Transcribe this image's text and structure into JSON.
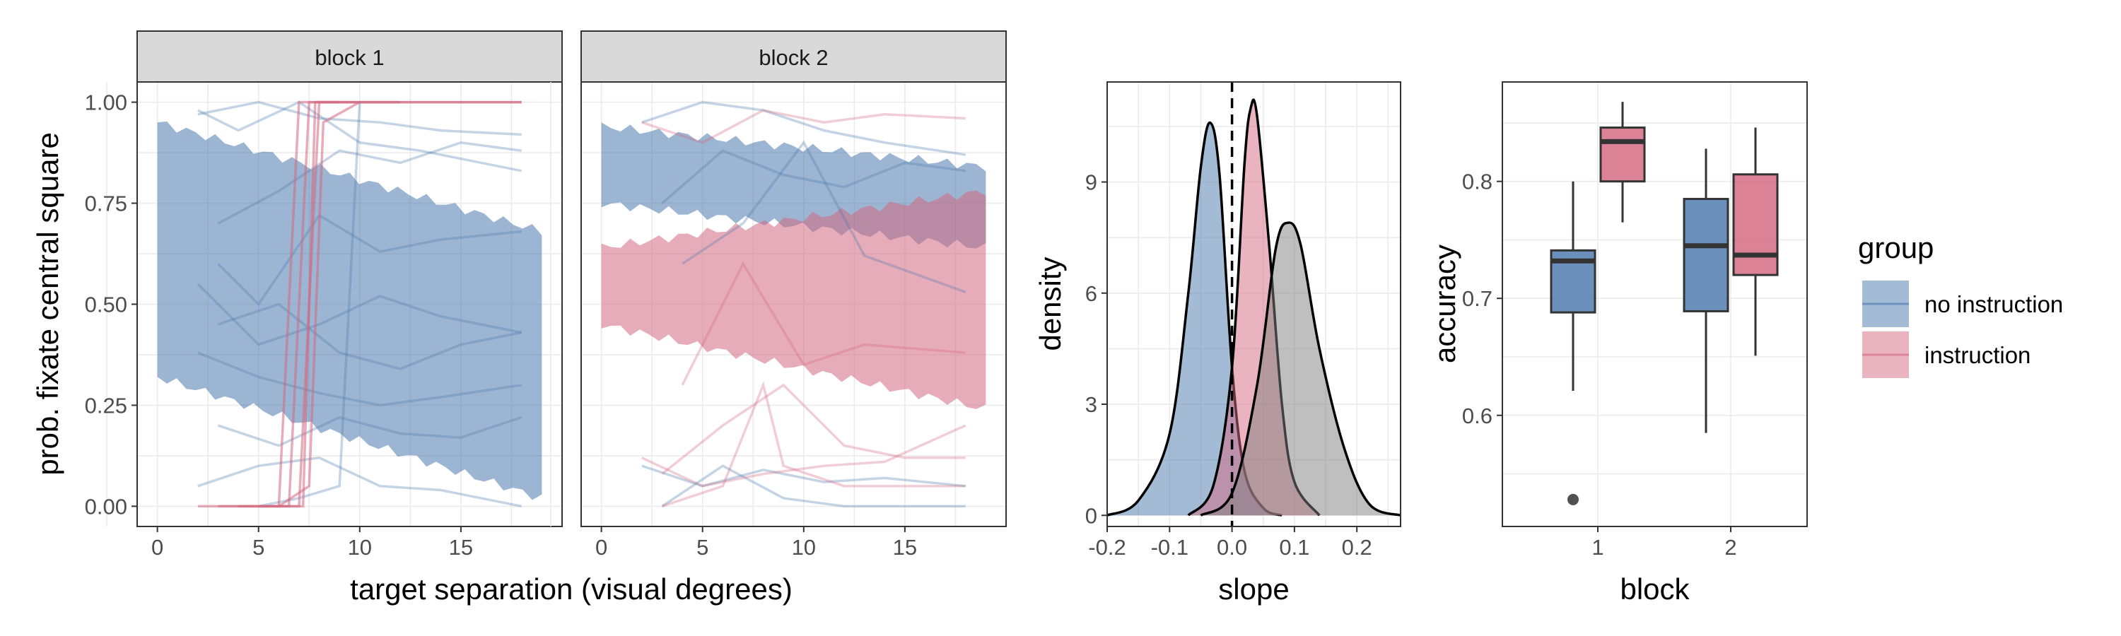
{
  "colors": {
    "no_instruction": "#4a78ad",
    "instruction": "#d4677f",
    "overlap": "#808080",
    "grid": "#ebebeb",
    "border": "#333333",
    "strip_fill": "#d9d9d9"
  },
  "legend": {
    "title": "group",
    "items": [
      "no instruction",
      "instruction"
    ]
  },
  "chart_data": [
    {
      "type": "line",
      "facets": [
        "block 1",
        "block 2"
      ],
      "xlabel": "target separation (visual degrees)",
      "ylabel": "prob. fixate central square",
      "xlim": [
        -1,
        20
      ],
      "ylim": [
        -0.05,
        1.05
      ],
      "xticks": [
        "0",
        "5",
        "10",
        "15"
      ],
      "yticks": [
        "0.00",
        "0.25",
        "0.50",
        "0.75",
        "1.00"
      ],
      "ribbons": [
        {
          "facet": "block 1",
          "series": "no instruction",
          "x": [
            0,
            19
          ],
          "lower": [
            0.32,
            0.02
          ],
          "upper": [
            0.95,
            0.68
          ]
        },
        {
          "facet": "block 2",
          "series": "no instruction",
          "x": [
            0,
            19
          ],
          "lower": [
            0.75,
            0.64
          ],
          "upper": [
            0.94,
            0.84
          ]
        },
        {
          "facet": "block 2",
          "series": "instruction",
          "x": [
            0,
            19
          ],
          "lower": [
            0.45,
            0.24
          ],
          "upper": [
            0.64,
            0.78
          ]
        }
      ],
      "individual_lines": [
        {
          "facet": "block 1",
          "series": "no instruction",
          "x": [
            2,
            5,
            8,
            11,
            14,
            18
          ],
          "y": [
            0.97,
            1.0,
            0.96,
            0.95,
            0.93,
            0.92
          ]
        },
        {
          "facet": "block 1",
          "series": "no instruction",
          "x": [
            3,
            6,
            9,
            12,
            15,
            18
          ],
          "y": [
            0.7,
            0.78,
            0.88,
            0.85,
            0.9,
            0.88
          ]
        },
        {
          "facet": "block 1",
          "series": "no instruction",
          "x": [
            2,
            4,
            7,
            10,
            13,
            18
          ],
          "y": [
            0.98,
            0.93,
            1.0,
            0.9,
            0.88,
            0.83
          ]
        },
        {
          "facet": "block 1",
          "series": "no instruction",
          "x": [
            3,
            5,
            8,
            11,
            14,
            18
          ],
          "y": [
            0.6,
            0.5,
            0.72,
            0.63,
            0.66,
            0.68
          ]
        },
        {
          "facet": "block 1",
          "series": "no instruction",
          "x": [
            2,
            5,
            8,
            11,
            14,
            18
          ],
          "y": [
            0.55,
            0.4,
            0.45,
            0.52,
            0.47,
            0.43
          ]
        },
        {
          "facet": "block 1",
          "series": "no instruction",
          "x": [
            3,
            6,
            9,
            12,
            15,
            18
          ],
          "y": [
            0.45,
            0.5,
            0.38,
            0.34,
            0.4,
            0.43
          ]
        },
        {
          "facet": "block 1",
          "series": "no instruction",
          "x": [
            2,
            5,
            8,
            11,
            14,
            18
          ],
          "y": [
            0.38,
            0.32,
            0.28,
            0.25,
            0.27,
            0.3
          ]
        },
        {
          "facet": "block 1",
          "series": "no instruction",
          "x": [
            3,
            6,
            9,
            12,
            15,
            18
          ],
          "y": [
            0.2,
            0.15,
            0.22,
            0.18,
            0.17,
            0.22
          ]
        },
        {
          "facet": "block 1",
          "series": "no instruction",
          "x": [
            2,
            5,
            8,
            11,
            14,
            18
          ],
          "y": [
            0.05,
            0.1,
            0.12,
            0.05,
            0.04,
            0.0
          ]
        },
        {
          "facet": "block 1",
          "series": "no instruction",
          "x": [
            5,
            7,
            9,
            10
          ],
          "y": [
            0.0,
            0.02,
            0.05,
            1.0
          ]
        },
        {
          "facet": "block 1",
          "series": "instruction",
          "x": [
            2,
            6,
            7,
            18
          ],
          "y": [
            0.0,
            0.0,
            1.0,
            1.0
          ]
        },
        {
          "facet": "block 1",
          "series": "instruction",
          "x": [
            3,
            6.5,
            7.5,
            18
          ],
          "y": [
            0.0,
            0.0,
            1.0,
            1.0
          ]
        },
        {
          "facet": "block 1",
          "series": "instruction",
          "x": [
            4,
            7,
            8,
            12
          ],
          "y": [
            0.0,
            0.0,
            1.0,
            1.0
          ]
        },
        {
          "facet": "block 1",
          "series": "instruction",
          "x": [
            5,
            7.2,
            7.8,
            9
          ],
          "y": [
            0.0,
            0.0,
            1.0,
            1.0
          ]
        },
        {
          "facet": "block 1",
          "series": "instruction",
          "x": [
            6,
            7.5,
            8.2,
            10
          ],
          "y": [
            0.0,
            0.05,
            0.95,
            1.0
          ]
        },
        {
          "facet": "block 2",
          "series": "no instruction",
          "x": [
            2,
            5,
            8,
            11,
            14,
            18
          ],
          "y": [
            0.95,
            1.0,
            0.98,
            0.93,
            0.9,
            0.87
          ]
        },
        {
          "facet": "block 2",
          "series": "no instruction",
          "x": [
            3,
            6,
            9,
            12,
            15,
            18
          ],
          "y": [
            0.75,
            0.88,
            0.82,
            0.79,
            0.85,
            0.83
          ]
        },
        {
          "facet": "block 2",
          "series": "no instruction",
          "x": [
            4,
            7,
            10,
            13,
            18
          ],
          "y": [
            0.6,
            0.7,
            0.9,
            0.62,
            0.53
          ]
        },
        {
          "facet": "block 2",
          "series": "no instruction",
          "x": [
            2,
            5,
            8,
            11,
            14,
            18
          ],
          "y": [
            0.1,
            0.05,
            0.09,
            0.06,
            0.07,
            0.05
          ]
        },
        {
          "facet": "block 2",
          "series": "no instruction",
          "x": [
            3,
            6,
            9,
            12,
            15,
            18
          ],
          "y": [
            0.0,
            0.1,
            0.02,
            0.0,
            0.0,
            0.0
          ]
        },
        {
          "facet": "block 2",
          "series": "instruction",
          "x": [
            2,
            5,
            8,
            11,
            14,
            18
          ],
          "y": [
            0.95,
            0.9,
            0.98,
            0.95,
            0.97,
            0.96
          ]
        },
        {
          "facet": "block 2",
          "series": "instruction",
          "x": [
            3,
            6,
            9,
            12,
            15,
            18
          ],
          "y": [
            0.08,
            0.2,
            0.3,
            0.15,
            0.12,
            0.12
          ]
        },
        {
          "facet": "block 2",
          "series": "instruction",
          "x": [
            2,
            5,
            8,
            11,
            14,
            18
          ],
          "y": [
            0.12,
            0.05,
            0.08,
            0.1,
            0.11,
            0.2
          ]
        },
        {
          "facet": "block 2",
          "series": "instruction",
          "x": [
            4,
            7,
            10,
            13,
            18
          ],
          "y": [
            0.3,
            0.6,
            0.35,
            0.4,
            0.38
          ]
        },
        {
          "facet": "block 2",
          "series": "instruction",
          "x": [
            3,
            6,
            8,
            9,
            12,
            18
          ],
          "y": [
            0.0,
            0.05,
            0.3,
            0.1,
            0.05,
            0.05
          ]
        }
      ]
    },
    {
      "type": "area",
      "xlabel": "slope",
      "ylabel": "density",
      "xlim": [
        -0.2,
        0.27
      ],
      "ylim": [
        -0.3,
        11.7
      ],
      "xticks": [
        "-0.2",
        "-0.1",
        "0.0",
        "0.1",
        "0.2"
      ],
      "yticks": [
        "0",
        "3",
        "6",
        "9"
      ],
      "reference_line": {
        "x": 0.0,
        "style": "dashed"
      },
      "densities": [
        {
          "series": "no instruction",
          "x": [
            -0.2,
            -0.15,
            -0.1,
            -0.07,
            -0.05,
            -0.035,
            -0.02,
            0.0,
            0.02,
            0.05,
            0.08
          ],
          "y": [
            0.0,
            0.4,
            2.2,
            6.0,
            9.4,
            10.6,
            9.2,
            4.0,
            1.2,
            0.2,
            0.0
          ]
        },
        {
          "series": "instruction",
          "x": [
            -0.07,
            -0.03,
            0.0,
            0.02,
            0.03,
            0.04,
            0.06,
            0.08,
            0.1,
            0.14
          ],
          "y": [
            0.0,
            0.8,
            4.0,
            9.5,
            11.0,
            10.8,
            7.2,
            3.0,
            0.9,
            0.0
          ]
        },
        {
          "series": "other",
          "x": [
            -0.05,
            0.0,
            0.04,
            0.07,
            0.09,
            0.11,
            0.14,
            0.18,
            0.22,
            0.27
          ],
          "y": [
            0.0,
            0.6,
            3.5,
            7.2,
            7.9,
            7.3,
            4.5,
            1.8,
            0.3,
            0.0
          ]
        }
      ]
    },
    {
      "type": "box",
      "xlabel": "block",
      "ylabel": "accuracy",
      "ylim": [
        0.505,
        0.885
      ],
      "categories": [
        "1",
        "2"
      ],
      "yticks": [
        "0.6",
        "0.7",
        "0.8"
      ],
      "boxes": [
        {
          "category": "1",
          "series": "no instruction",
          "min": 0.621,
          "q1": 0.688,
          "median": 0.732,
          "q3": 0.741,
          "max": 0.8,
          "outliers": [
            0.528
          ]
        },
        {
          "category": "1",
          "series": "instruction",
          "min": 0.765,
          "q1": 0.8,
          "median": 0.834,
          "q3": 0.846,
          "max": 0.868,
          "outliers": []
        },
        {
          "category": "2",
          "series": "no instruction",
          "min": 0.585,
          "q1": 0.689,
          "median": 0.745,
          "q3": 0.785,
          "max": 0.828,
          "outliers": []
        },
        {
          "category": "2",
          "series": "instruction",
          "min": 0.651,
          "q1": 0.72,
          "median": 0.737,
          "q3": 0.806,
          "max": 0.846,
          "outliers": []
        }
      ]
    }
  ]
}
